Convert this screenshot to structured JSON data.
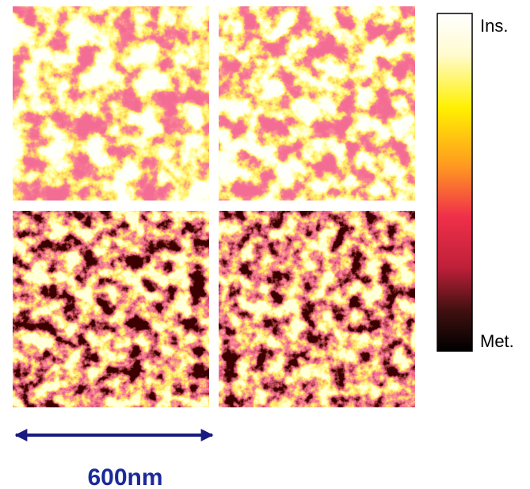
{
  "colorbar": {
    "top_label": "Ins.",
    "bottom_label": "Met."
  },
  "scale_bar": {
    "label": "600nm"
  }
}
